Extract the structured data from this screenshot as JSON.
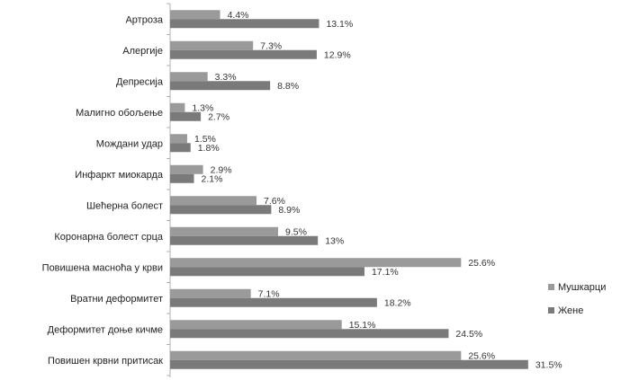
{
  "chart_data": {
    "type": "bar",
    "orientation": "horizontal",
    "categories": [
      "Артроза",
      "Алергије",
      "Депресија",
      "Малигно обољење",
      "Мождани удар",
      "Инфаркт миокарда",
      "Шећерна болест",
      "Коронарна болест срца",
      "Повишена масноћа у крви",
      "Вратни деформитет",
      "Деформитет доње кичме",
      "Повишен крвни притисак"
    ],
    "series": [
      {
        "name": "Мушкарци",
        "values": [
          4.4,
          7.3,
          3.3,
          1.3,
          1.5,
          2.9,
          7.6,
          9.5,
          25.6,
          7.1,
          15.1,
          25.6
        ],
        "labels": [
          "4.4%",
          "7.3%",
          "3.3%",
          "1.3%",
          "1.5%",
          "2.9%",
          "7.6%",
          "9.5%",
          "25.6%",
          "7.1%",
          "15.1%",
          "25.6%"
        ],
        "color": "#9a9a9a"
      },
      {
        "name": "Жене",
        "values": [
          13.1,
          12.9,
          8.8,
          2.7,
          1.8,
          2.1,
          8.9,
          13,
          17.1,
          18.2,
          24.5,
          31.5
        ],
        "labels": [
          "13.1%",
          "12.9%",
          "8.8%",
          "2.7%",
          "1.8%",
          "2.1%",
          "8.9%",
          "13%",
          "17.1%",
          "18.2%",
          "24.5%",
          "31.5%"
        ],
        "color": "#7a7a7a"
      }
    ],
    "title": "",
    "xlabel": "",
    "ylabel": "",
    "xlim": [
      0,
      31.5
    ],
    "grid": false,
    "legend": "right"
  }
}
